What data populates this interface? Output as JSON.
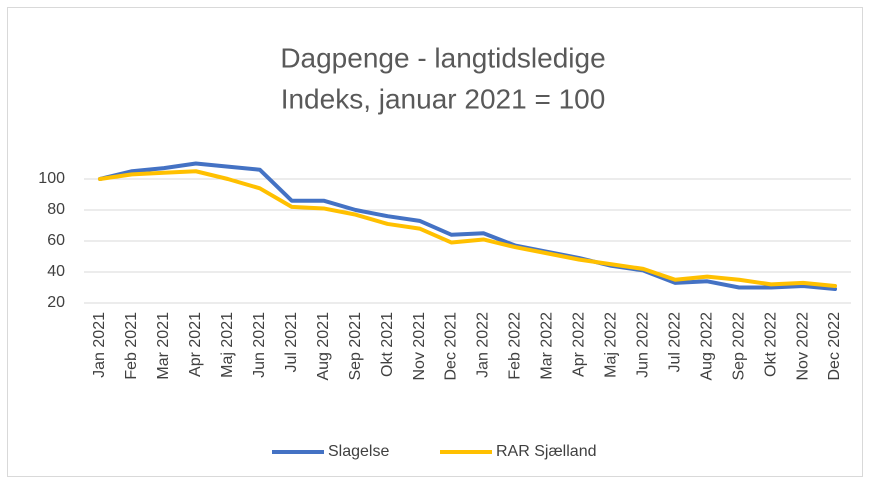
{
  "chart_data": {
    "type": "line",
    "title": "Dagpenge - langtidsledige",
    "subtitle": "Indeks, januar 2021 = 100",
    "categories": [
      "Jan 2021",
      "Feb 2021",
      "Mar 2021",
      "Apr 2021",
      "Maj 2021",
      "Jun 2021",
      "Jul 2021",
      "Aug 2021",
      "Sep 2021",
      "Okt 2021",
      "Nov 2021",
      "Dec 2021",
      "Jan 2022",
      "Feb 2022",
      "Mar 2022",
      "Apr 2022",
      "Maj 2022",
      "Jun 2022",
      "Jul 2022",
      "Aug 2022",
      "Sep 2022",
      "Okt 2022",
      "Nov 2022",
      "Dec 2022"
    ],
    "series": [
      {
        "name": "Slagelse",
        "color": "#4472c4",
        "values": [
          100,
          105,
          107,
          110,
          108,
          106,
          86,
          86,
          80,
          76,
          73,
          64,
          65,
          57,
          53,
          49,
          44,
          41,
          33,
          34,
          30,
          30,
          31,
          29
        ]
      },
      {
        "name": "RAR Sjælland",
        "color": "#ffc000",
        "values": [
          100,
          103,
          104,
          105,
          100,
          94,
          82,
          81,
          77,
          71,
          68,
          59,
          61,
          56,
          52,
          48,
          45,
          42,
          35,
          37,
          35,
          32,
          33,
          31
        ]
      }
    ],
    "ylim": [
      20,
      100
    ],
    "yticks": [
      20,
      40,
      60,
      80,
      100
    ],
    "grid": true,
    "legend": "bottom"
  }
}
